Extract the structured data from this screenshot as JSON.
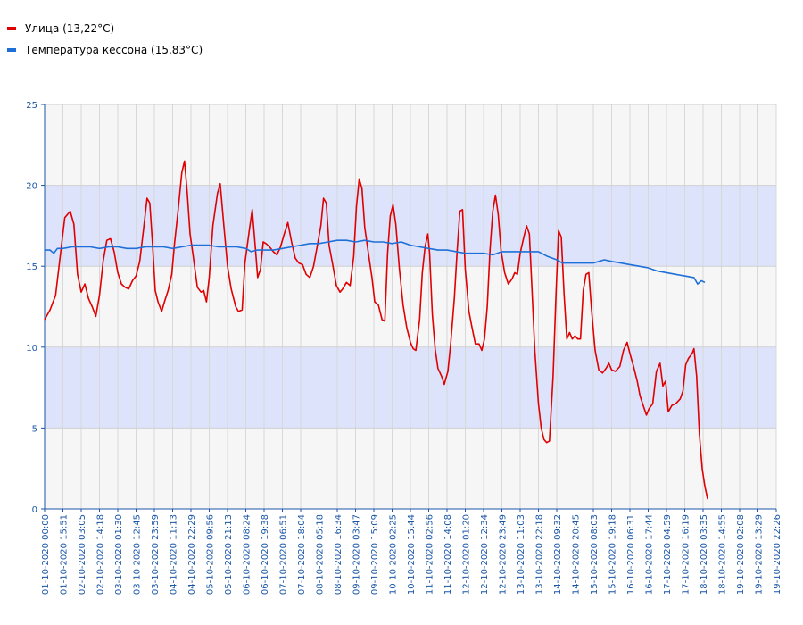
{
  "legend": [
    {
      "label": "Улица (13,22°C)",
      "color": "#e00000"
    },
    {
      "label": "Температура кессона (15,83°C)",
      "color": "#1e6fd8"
    }
  ],
  "chart_data": {
    "type": "line",
    "ylim": [
      0,
      25
    ],
    "yticks": [
      0,
      5,
      10,
      15,
      20,
      25
    ],
    "grid": true,
    "band_color": "#dde3fb",
    "legend_position": "top-left",
    "xticks": [
      "01-10-2020 00:00",
      "01-10-2020 15:51",
      "02-10-2020 03:05",
      "02-10-2020 14:18",
      "03-10-2020 01:30",
      "03-10-2020 12:45",
      "03-10-2020 23:59",
      "04-10-2020 11:13",
      "04-10-2020 22:29",
      "05-10-2020 09:56",
      "05-10-2020 21:13",
      "06-10-2020 08:24",
      "06-10-2020 19:38",
      "07-10-2020 06:51",
      "07-10-2020 18:04",
      "08-10-2020 05:18",
      "08-10-2020 16:34",
      "09-10-2020 03:47",
      "09-10-2020 15:09",
      "10-10-2020 02:25",
      "10-10-2020 15:44",
      "11-10-2020 02:56",
      "11-10-2020 14:08",
      "12-10-2020 01:20",
      "12-10-2020 12:34",
      "12-10-2020 23:49",
      "13-10-2020 11:03",
      "13-10-2020 22:18",
      "14-10-2020 09:32",
      "14-10-2020 20:45",
      "15-10-2020 08:03",
      "15-10-2020 19:18",
      "16-10-2020 06:31",
      "16-10-2020 17:44",
      "17-10-2020 04:59",
      "17-10-2020 16:19",
      "18-10-2020 03:35",
      "18-10-2020 14:55",
      "19-10-2020 02:08",
      "19-10-2020 13:29",
      "19-10-2020 22:26"
    ],
    "series": [
      {
        "name": "Улица (13,22°C)",
        "color": "#e00000",
        "values": [
          [
            0,
            11.7
          ],
          [
            0.3,
            12.3
          ],
          [
            0.6,
            13.2
          ],
          [
            0.9,
            16.1
          ],
          [
            1.1,
            18.0
          ],
          [
            1.4,
            18.4
          ],
          [
            1.6,
            17.6
          ],
          [
            1.8,
            14.5
          ],
          [
            2.0,
            13.4
          ],
          [
            2.2,
            13.9
          ],
          [
            2.4,
            13.0
          ],
          [
            2.6,
            12.5
          ],
          [
            2.8,
            11.9
          ],
          [
            3.0,
            13.2
          ],
          [
            3.2,
            15.3
          ],
          [
            3.4,
            16.6
          ],
          [
            3.6,
            16.7
          ],
          [
            3.8,
            15.9
          ],
          [
            4.0,
            14.6
          ],
          [
            4.2,
            13.9
          ],
          [
            4.4,
            13.7
          ],
          [
            4.6,
            13.6
          ],
          [
            4.8,
            14.1
          ],
          [
            5.0,
            14.4
          ],
          [
            5.2,
            15.3
          ],
          [
            5.4,
            17.2
          ],
          [
            5.6,
            19.2
          ],
          [
            5.75,
            18.9
          ],
          [
            5.9,
            16.4
          ],
          [
            6.05,
            13.5
          ],
          [
            6.2,
            12.8
          ],
          [
            6.4,
            12.2
          ],
          [
            6.55,
            12.8
          ],
          [
            6.75,
            13.5
          ],
          [
            6.95,
            14.5
          ],
          [
            7.1,
            16.4
          ],
          [
            7.3,
            18.5
          ],
          [
            7.5,
            20.8
          ],
          [
            7.65,
            21.5
          ],
          [
            7.8,
            19.5
          ],
          [
            7.95,
            17.0
          ],
          [
            8.1,
            15.8
          ],
          [
            8.35,
            13.7
          ],
          [
            8.55,
            13.4
          ],
          [
            8.7,
            13.5
          ],
          [
            8.85,
            12.8
          ],
          [
            9.0,
            14.3
          ],
          [
            9.2,
            17.5
          ],
          [
            9.45,
            19.5
          ],
          [
            9.6,
            20.1
          ],
          [
            9.8,
            17.5
          ],
          [
            10.0,
            15.0
          ],
          [
            10.2,
            13.6
          ],
          [
            10.45,
            12.5
          ],
          [
            10.6,
            12.2
          ],
          [
            10.8,
            12.3
          ],
          [
            10.95,
            15.2
          ],
          [
            11.2,
            17.3
          ],
          [
            11.35,
            18.5
          ],
          [
            11.5,
            16.4
          ],
          [
            11.65,
            14.3
          ],
          [
            11.8,
            14.8
          ],
          [
            11.95,
            16.5
          ],
          [
            12.1,
            16.4
          ],
          [
            12.3,
            16.2
          ],
          [
            12.5,
            15.9
          ],
          [
            12.7,
            15.7
          ],
          [
            12.9,
            16.2
          ],
          [
            13.1,
            17.0
          ],
          [
            13.3,
            17.7
          ],
          [
            13.5,
            16.5
          ],
          [
            13.7,
            15.5
          ],
          [
            13.9,
            15.2
          ],
          [
            14.1,
            15.1
          ],
          [
            14.3,
            14.5
          ],
          [
            14.5,
            14.3
          ],
          [
            14.7,
            15.0
          ],
          [
            14.9,
            16.2
          ],
          [
            15.1,
            17.5
          ],
          [
            15.25,
            19.2
          ],
          [
            15.4,
            18.9
          ],
          [
            15.55,
            16.3
          ],
          [
            15.75,
            15.1
          ],
          [
            15.95,
            13.8
          ],
          [
            16.15,
            13.4
          ],
          [
            16.3,
            13.6
          ],
          [
            16.5,
            14.0
          ],
          [
            16.7,
            13.8
          ],
          [
            16.9,
            15.6
          ],
          [
            17.05,
            18.7
          ],
          [
            17.2,
            20.4
          ],
          [
            17.35,
            19.8
          ],
          [
            17.5,
            17.4
          ],
          [
            17.7,
            15.8
          ],
          [
            17.9,
            14.3
          ],
          [
            18.05,
            12.8
          ],
          [
            18.25,
            12.6
          ],
          [
            18.45,
            11.7
          ],
          [
            18.6,
            11.6
          ],
          [
            18.75,
            15.8
          ],
          [
            18.9,
            18.1
          ],
          [
            19.05,
            18.8
          ],
          [
            19.2,
            17.6
          ],
          [
            19.4,
            14.8
          ],
          [
            19.6,
            12.6
          ],
          [
            19.8,
            11.2
          ],
          [
            20.0,
            10.3
          ],
          [
            20.15,
            9.9
          ],
          [
            20.3,
            9.8
          ],
          [
            20.5,
            11.7
          ],
          [
            20.65,
            14.6
          ],
          [
            20.8,
            16.2
          ],
          [
            20.95,
            17.0
          ],
          [
            21.05,
            15.8
          ],
          [
            21.2,
            12.0
          ],
          [
            21.35,
            9.9
          ],
          [
            21.5,
            8.7
          ],
          [
            21.7,
            8.2
          ],
          [
            21.85,
            7.7
          ],
          [
            22.05,
            8.5
          ],
          [
            22.2,
            10.2
          ],
          [
            22.4,
            13.0
          ],
          [
            22.55,
            15.9
          ],
          [
            22.7,
            18.4
          ],
          [
            22.85,
            18.5
          ],
          [
            23.0,
            14.8
          ],
          [
            23.2,
            12.2
          ],
          [
            23.35,
            11.3
          ],
          [
            23.55,
            10.2
          ],
          [
            23.75,
            10.2
          ],
          [
            23.9,
            9.8
          ],
          [
            24.05,
            10.5
          ],
          [
            24.2,
            12.5
          ],
          [
            24.35,
            16.0
          ],
          [
            24.5,
            18.4
          ],
          [
            24.65,
            19.4
          ],
          [
            24.8,
            18.2
          ],
          [
            24.95,
            16.0
          ],
          [
            25.15,
            14.6
          ],
          [
            25.35,
            13.9
          ],
          [
            25.55,
            14.2
          ],
          [
            25.7,
            14.6
          ],
          [
            25.85,
            14.5
          ],
          [
            26.0,
            15.8
          ],
          [
            26.2,
            16.8
          ],
          [
            26.35,
            17.5
          ],
          [
            26.5,
            17.0
          ],
          [
            26.65,
            13.5
          ],
          [
            26.8,
            9.8
          ],
          [
            27.0,
            6.5
          ],
          [
            27.15,
            5.0
          ],
          [
            27.3,
            4.3
          ],
          [
            27.45,
            4.1
          ],
          [
            27.6,
            4.2
          ],
          [
            27.8,
            8.2
          ],
          [
            27.95,
            13.0
          ],
          [
            28.1,
            17.2
          ],
          [
            28.25,
            16.8
          ],
          [
            28.4,
            13.3
          ],
          [
            28.55,
            10.5
          ],
          [
            28.7,
            10.9
          ],
          [
            28.85,
            10.5
          ],
          [
            29.0,
            10.7
          ],
          [
            29.15,
            10.5
          ],
          [
            29.3,
            10.5
          ],
          [
            29.45,
            13.5
          ],
          [
            29.6,
            14.5
          ],
          [
            29.75,
            14.6
          ],
          [
            29.9,
            12.3
          ],
          [
            30.1,
            9.8
          ],
          [
            30.3,
            8.6
          ],
          [
            30.5,
            8.4
          ],
          [
            30.7,
            8.7
          ],
          [
            30.85,
            9.0
          ],
          [
            31.0,
            8.6
          ],
          [
            31.2,
            8.5
          ],
          [
            31.45,
            8.8
          ],
          [
            31.65,
            9.8
          ],
          [
            31.85,
            10.3
          ],
          [
            32.0,
            9.6
          ],
          [
            32.2,
            8.8
          ],
          [
            32.4,
            7.9
          ],
          [
            32.55,
            7.0
          ],
          [
            32.75,
            6.3
          ],
          [
            32.9,
            5.8
          ],
          [
            33.05,
            6.2
          ],
          [
            33.25,
            6.5
          ],
          [
            33.45,
            8.5
          ],
          [
            33.65,
            9.0
          ],
          [
            33.8,
            7.6
          ],
          [
            33.95,
            7.9
          ],
          [
            34.1,
            6.0
          ],
          [
            34.3,
            6.4
          ],
          [
            34.5,
            6.5
          ],
          [
            34.75,
            6.8
          ],
          [
            34.9,
            7.3
          ],
          [
            35.05,
            8.9
          ],
          [
            35.2,
            9.3
          ],
          [
            35.4,
            9.6
          ],
          [
            35.5,
            9.9
          ],
          [
            35.65,
            8.2
          ],
          [
            35.8,
            4.6
          ],
          [
            35.95,
            2.5
          ],
          [
            36.1,
            1.4
          ],
          [
            36.25,
            0.6
          ]
        ]
      },
      {
        "name": "Температура кессона (15,83°C)",
        "color": "#1e6fd8",
        "values": [
          [
            0,
            16.0
          ],
          [
            0.3,
            16.0
          ],
          [
            0.5,
            15.8
          ],
          [
            0.7,
            16.1
          ],
          [
            1.0,
            16.1
          ],
          [
            1.5,
            16.2
          ],
          [
            2.0,
            16.2
          ],
          [
            2.5,
            16.2
          ],
          [
            3.0,
            16.1
          ],
          [
            3.5,
            16.2
          ],
          [
            4.0,
            16.2
          ],
          [
            4.5,
            16.1
          ],
          [
            5.0,
            16.1
          ],
          [
            5.5,
            16.2
          ],
          [
            6.0,
            16.2
          ],
          [
            6.5,
            16.2
          ],
          [
            7.0,
            16.1
          ],
          [
            7.5,
            16.2
          ],
          [
            8.0,
            16.3
          ],
          [
            8.5,
            16.3
          ],
          [
            9.0,
            16.3
          ],
          [
            9.5,
            16.2
          ],
          [
            10.0,
            16.2
          ],
          [
            10.5,
            16.2
          ],
          [
            11.0,
            16.1
          ],
          [
            11.3,
            15.9
          ],
          [
            11.6,
            16.0
          ],
          [
            12.0,
            16.0
          ],
          [
            12.5,
            16.0
          ],
          [
            13.0,
            16.1
          ],
          [
            13.5,
            16.2
          ],
          [
            14.0,
            16.3
          ],
          [
            14.5,
            16.4
          ],
          [
            15.0,
            16.4
          ],
          [
            15.5,
            16.5
          ],
          [
            16.0,
            16.6
          ],
          [
            16.5,
            16.6
          ],
          [
            17.0,
            16.5
          ],
          [
            17.5,
            16.6
          ],
          [
            18.0,
            16.5
          ],
          [
            18.5,
            16.5
          ],
          [
            19.0,
            16.4
          ],
          [
            19.5,
            16.5
          ],
          [
            20.0,
            16.3
          ],
          [
            20.5,
            16.2
          ],
          [
            21.0,
            16.1
          ],
          [
            21.5,
            16.0
          ],
          [
            22.0,
            16.0
          ],
          [
            22.5,
            15.9
          ],
          [
            23.0,
            15.8
          ],
          [
            23.5,
            15.8
          ],
          [
            24.0,
            15.8
          ],
          [
            24.5,
            15.7
          ],
          [
            25.0,
            15.9
          ],
          [
            25.5,
            15.9
          ],
          [
            26.0,
            15.9
          ],
          [
            26.5,
            15.9
          ],
          [
            27.0,
            15.9
          ],
          [
            27.5,
            15.6
          ],
          [
            28.0,
            15.4
          ],
          [
            28.3,
            15.2
          ],
          [
            28.6,
            15.2
          ],
          [
            29.0,
            15.2
          ],
          [
            29.5,
            15.2
          ],
          [
            30.0,
            15.2
          ],
          [
            30.3,
            15.3
          ],
          [
            30.6,
            15.4
          ],
          [
            31.0,
            15.3
          ],
          [
            31.5,
            15.2
          ],
          [
            32.0,
            15.1
          ],
          [
            32.5,
            15.0
          ],
          [
            33.0,
            14.9
          ],
          [
            33.5,
            14.7
          ],
          [
            34.0,
            14.6
          ],
          [
            34.5,
            14.5
          ],
          [
            35.0,
            14.4
          ],
          [
            35.5,
            14.3
          ],
          [
            35.7,
            13.9
          ],
          [
            35.9,
            14.1
          ],
          [
            36.1,
            14.0
          ]
        ]
      }
    ]
  }
}
